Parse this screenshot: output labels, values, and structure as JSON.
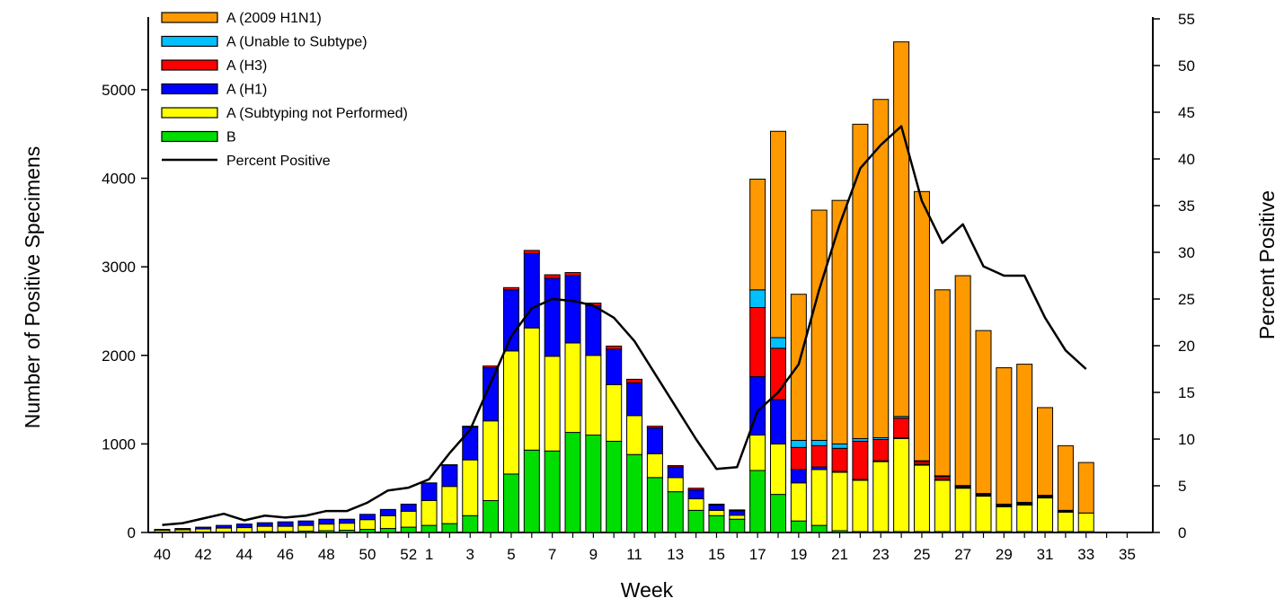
{
  "chart_data": {
    "type": "bar",
    "stacked": true,
    "title": "",
    "xlabel": "Week",
    "ylabel": "Number of Positive Specimens",
    "y2label": "Percent Positive",
    "ylim": [
      0,
      5800
    ],
    "y2lim": [
      0,
      55
    ],
    "y_ticks": [
      "0",
      "1000",
      "2000",
      "3000",
      "4000",
      "5000"
    ],
    "y2_ticks": [
      "0",
      "5",
      "10",
      "15",
      "20",
      "25",
      "30",
      "35",
      "40",
      "45",
      "50",
      "55"
    ],
    "x_tick_labels": [
      "40",
      "42",
      "44",
      "46",
      "48",
      "50",
      "52",
      "1",
      "3",
      "5",
      "7",
      "9",
      "11",
      "13",
      "15",
      "17",
      "19",
      "21",
      "23",
      "25",
      "27",
      "29",
      "31",
      "33",
      "35"
    ],
    "categories": [
      "40",
      "41",
      "42",
      "43",
      "44",
      "45",
      "46",
      "47",
      "48",
      "49",
      "50",
      "51",
      "52",
      "1",
      "2",
      "3",
      "4",
      "5",
      "6",
      "7",
      "8",
      "9",
      "10",
      "11",
      "12",
      "13",
      "14",
      "15",
      "16",
      "17",
      "18",
      "19",
      "20",
      "21",
      "22",
      "23",
      "24",
      "25",
      "26",
      "27",
      "28",
      "29",
      "30",
      "31",
      "32",
      "33",
      "34",
      "35"
    ],
    "legend_position": "top-left",
    "series": [
      {
        "name": "B",
        "color": "#00dd00",
        "values": [
          5,
          5,
          5,
          5,
          5,
          10,
          10,
          15,
          20,
          25,
          35,
          45,
          60,
          80,
          100,
          190,
          360,
          660,
          930,
          920,
          1130,
          1100,
          1030,
          880,
          620,
          460,
          250,
          190,
          150,
          700,
          430,
          130,
          80,
          20,
          10,
          10,
          10,
          10,
          10,
          10,
          10,
          10,
          10,
          10,
          10,
          10,
          0,
          0
        ]
      },
      {
        "name": "A (Subtyping not Performed)",
        "color": "#ffff00",
        "values": [
          20,
          25,
          35,
          45,
          50,
          60,
          60,
          65,
          75,
          80,
          110,
          145,
          180,
          280,
          420,
          630,
          900,
          1390,
          1380,
          1070,
          1010,
          900,
          640,
          440,
          270,
          160,
          130,
          60,
          45,
          400,
          570,
          430,
          630,
          660,
          580,
          790,
          1050,
          750,
          580,
          490,
          400,
          280,
          300,
          380,
          220,
          210,
          0,
          0
        ]
      },
      {
        "name": "A (H1)",
        "color": "#0000ff",
        "values": [
          10,
          15,
          20,
          30,
          40,
          40,
          50,
          50,
          55,
          45,
          60,
          70,
          80,
          200,
          240,
          370,
          600,
          690,
          840,
          880,
          760,
          560,
          400,
          370,
          290,
          120,
          100,
          60,
          50,
          660,
          500,
          150,
          30,
          10,
          10,
          10,
          10,
          10,
          10,
          10,
          10,
          10,
          10,
          10,
          10,
          0,
          0,
          0
        ]
      },
      {
        "name": "A (H3)",
        "color": "#ff0000",
        "values": [
          0,
          0,
          0,
          0,
          0,
          0,
          0,
          0,
          0,
          0,
          0,
          0,
          0,
          0,
          5,
          10,
          20,
          25,
          35,
          40,
          35,
          30,
          35,
          40,
          20,
          15,
          20,
          10,
          10,
          780,
          580,
          250,
          240,
          260,
          430,
          240,
          220,
          30,
          30,
          10,
          10,
          10,
          10,
          10,
          0,
          0,
          0,
          0
        ]
      },
      {
        "name": "A (Unable to Subtype)",
        "color": "#00c0ff",
        "values": [
          0,
          0,
          0,
          0,
          0,
          0,
          0,
          0,
          0,
          0,
          0,
          0,
          0,
          0,
          0,
          0,
          0,
          0,
          0,
          0,
          0,
          0,
          0,
          0,
          0,
          0,
          0,
          0,
          0,
          200,
          120,
          80,
          60,
          50,
          30,
          20,
          20,
          10,
          10,
          10,
          10,
          10,
          10,
          10,
          10,
          0,
          0,
          0
        ]
      },
      {
        "name": "A (2009 H1N1)",
        "color": "#ff9900",
        "values": [
          0,
          0,
          0,
          0,
          0,
          0,
          0,
          0,
          0,
          0,
          0,
          0,
          0,
          0,
          0,
          0,
          0,
          0,
          0,
          0,
          0,
          0,
          0,
          0,
          0,
          0,
          0,
          0,
          0,
          1250,
          2330,
          1650,
          2600,
          2750,
          3550,
          3820,
          4230,
          3040,
          2100,
          2370,
          1840,
          1540,
          1560,
          990,
          730,
          570,
          0,
          0
        ]
      }
    ],
    "line": {
      "name": "Percent Positive",
      "color": "#000000",
      "values": [
        0.8,
        1.0,
        1.5,
        2.0,
        1.3,
        1.8,
        1.6,
        1.8,
        2.3,
        2.3,
        3.2,
        4.5,
        4.8,
        5.7,
        8.5,
        11.0,
        16.0,
        21.0,
        24.0,
        25.0,
        24.8,
        24.3,
        23.0,
        20.5,
        17.0,
        13.5,
        10.0,
        6.8,
        7.0,
        13.0,
        15.0,
        18.0,
        26.0,
        33.0,
        39.0,
        41.5,
        43.5,
        35.5,
        31.0,
        33.0,
        28.5,
        27.5,
        27.5,
        23.0,
        19.5,
        17.5,
        null,
        null
      ]
    }
  }
}
